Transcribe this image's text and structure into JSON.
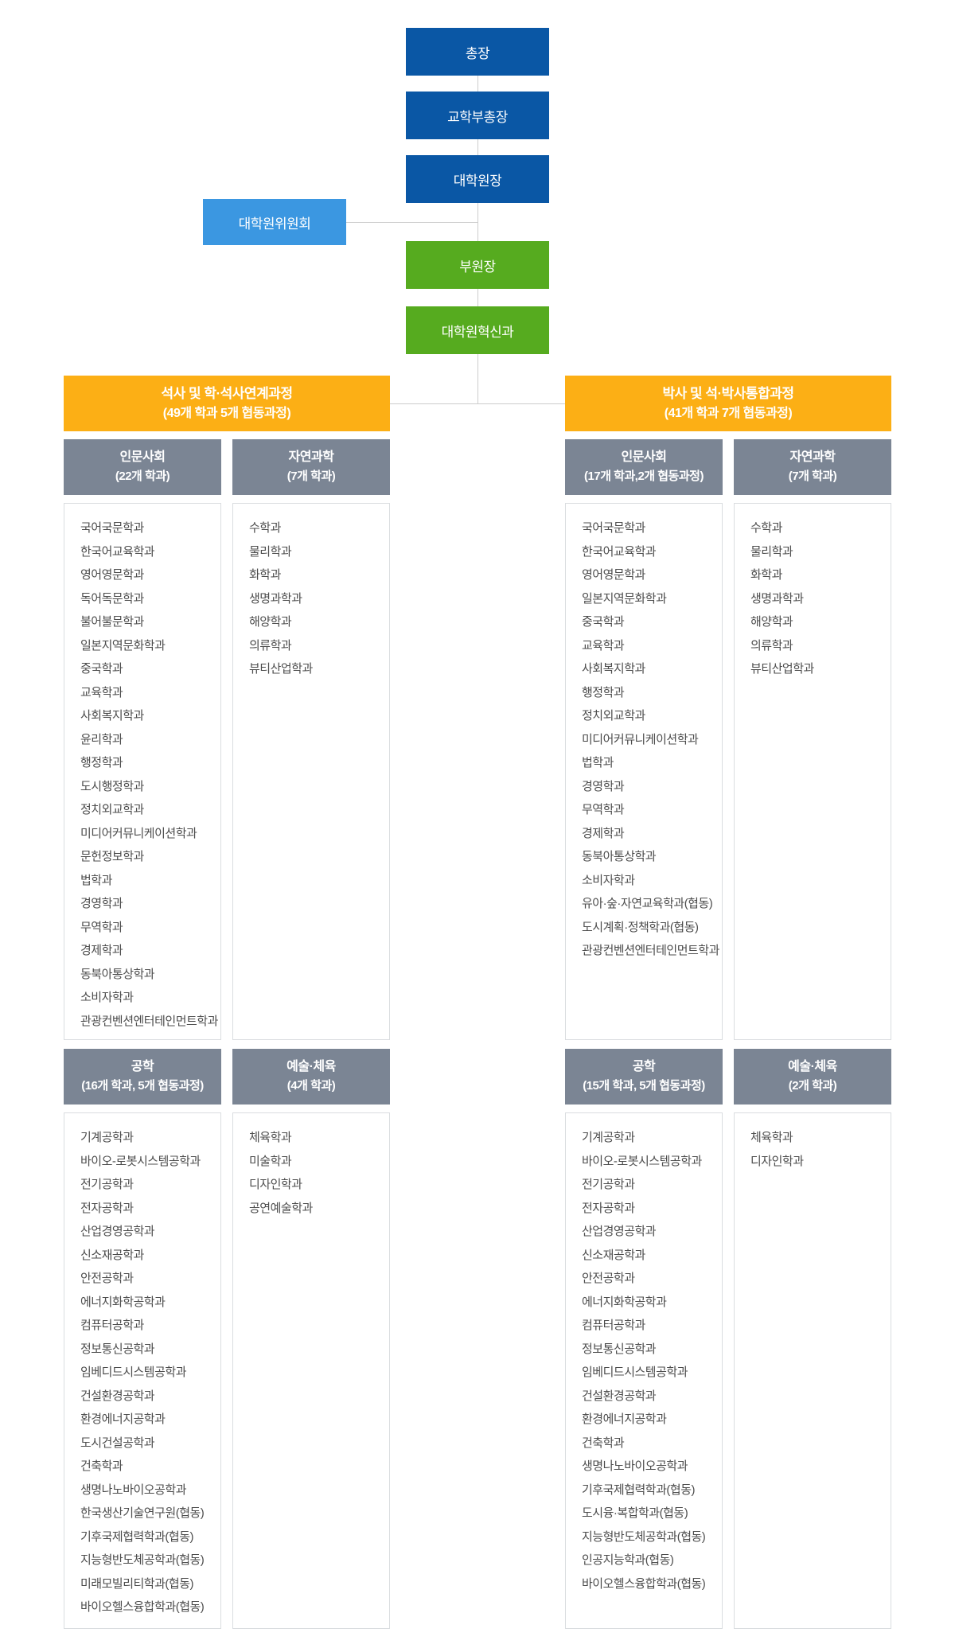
{
  "colors": {
    "primary_blue": "#0a57a5",
    "light_blue": "#3b97e1",
    "green": "#56ab1f",
    "orange": "#fcaf15",
    "slate_gray": "#7b8594",
    "connector_gray": "#cccccc"
  },
  "chain": {
    "president": "총장",
    "academic_vice_president": "교학부총장",
    "graduate_school_dean": "대학원장",
    "graduate_school_committee": "대학원위원회",
    "vice_dean": "부원장",
    "innovation_division": "대학원혁신과"
  },
  "sections": [
    {
      "title": "석사 및 학·석사연계과정",
      "subtitle": "(49개 학과 5개 협동과정)",
      "groups": [
        {
          "name": "인문사회",
          "count": "(22개 학과)",
          "departments": [
            "국어국문학과",
            "한국어교육학과",
            "영어영문학과",
            "독어독문학과",
            "불어불문학과",
            "일본지역문화학과",
            "중국학과",
            "교육학과",
            "사회복지학과",
            "윤리학과",
            "행정학과",
            "도시행정학과",
            "정치외교학과",
            "미디어커뮤니케이션학과",
            "문헌정보학과",
            "법학과",
            "경영학과",
            "무역학과",
            "경제학과",
            "동북아통상학과",
            "소비자학과",
            "관광컨벤션엔터테인먼트학과"
          ]
        },
        {
          "name": "자연과학",
          "count": "(7개 학과)",
          "departments": [
            "수학과",
            "물리학과",
            "화학과",
            "생명과학과",
            "해양학과",
            "의류학과",
            "뷰티산업학과"
          ]
        },
        {
          "name": "공학",
          "count": "(16개 학과, 5개 협동과정)",
          "departments": [
            "기계공학과",
            "바이오-로봇시스템공학과",
            "전기공학과",
            "전자공학과",
            "산업경영공학과",
            "신소재공학과",
            "안전공학과",
            "에너지화학공학과",
            "컴퓨터공학과",
            "정보통신공학과",
            "임베디드시스템공학과",
            "건설환경공학과",
            "환경에너지공학과",
            "도시건설공학과",
            "건축학과",
            "생명나노바이오공학과",
            "한국생산기술연구원(협동)",
            "기후국제협력학과(협동)",
            "지능형반도체공학과(협동)",
            "미래모빌리티학과(협동)",
            "바이오헬스융합학과(협동)"
          ]
        },
        {
          "name": "예술·체육",
          "count": "(4개 학과)",
          "departments": [
            "체육학과",
            "미술학과",
            "디자인학과",
            "공연예술학과"
          ]
        }
      ]
    },
    {
      "title": "박사 및 석·박사통합과정",
      "subtitle": "(41개 학과 7개 협동과정)",
      "groups": [
        {
          "name": "인문사회",
          "count": "(17개 학과,2개 협동과정)",
          "departments": [
            "국어국문학과",
            "한국어교육학과",
            "영어영문학과",
            "일본지역문화학과",
            "중국학과",
            "교육학과",
            "사회복지학과",
            "행정학과",
            "정치외교학과",
            "미디어커뮤니케이션학과",
            "법학과",
            "경영학과",
            "무역학과",
            "경제학과",
            "동북아통상학과",
            "소비자학과",
            "유아·숲·자연교육학과(협동)",
            "도시계획·정책학과(협동)",
            "관광컨벤션엔터테인먼트학과"
          ]
        },
        {
          "name": "자연과학",
          "count": "(7개 학과)",
          "departments": [
            "수학과",
            "물리학과",
            "화학과",
            "생명과학과",
            "해양학과",
            "의류학과",
            "뷰티산업학과"
          ]
        },
        {
          "name": "공학",
          "count": "(15개 학과, 5개 협동과정)",
          "departments": [
            "기계공학과",
            "바이오-로봇시스템공학과",
            "전기공학과",
            "전자공학과",
            "산업경영공학과",
            "신소재공학과",
            "안전공학과",
            "에너지화학공학과",
            "컴퓨터공학과",
            "정보통신공학과",
            "임베디드시스템공학과",
            "건설환경공학과",
            "환경에너지공학과",
            "건축학과",
            "생명나노바이오공학과",
            "기후국제협력학과(협동)",
            "도시융·복합학과(협동)",
            "지능형반도체공학과(협동)",
            "인공지능학과(협동)",
            "바이오헬스융합학과(협동)"
          ]
        },
        {
          "name": "예술·체육",
          "count": "(2개 학과)",
          "departments": [
            "체육학과",
            "디자인학과"
          ]
        }
      ]
    }
  ]
}
